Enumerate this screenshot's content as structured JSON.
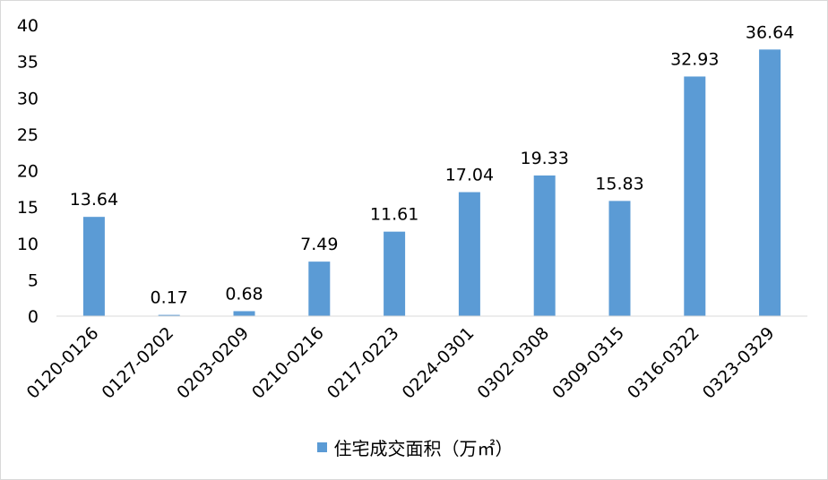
{
  "chart_data": {
    "type": "bar",
    "categories": [
      "0120-0126",
      "0127-0202",
      "0203-0209",
      "0210-0216",
      "0217-0223",
      "0224-0301",
      "0302-0308",
      "0309-0315",
      "0316-0322",
      "0323-0329"
    ],
    "series": [
      {
        "name": "住宅成交面积（万㎡）",
        "values": [
          13.64,
          0.17,
          0.68,
          7.49,
          11.61,
          17.04,
          19.33,
          15.83,
          32.93,
          36.64
        ],
        "labels": [
          "13.64",
          "0.17",
          "0.68",
          "7.49",
          "11.61",
          "17.04",
          "19.33",
          "15.83",
          "32.93",
          "36.64"
        ],
        "color": "#5b9bd5"
      }
    ],
    "ylim": [
      0,
      40
    ],
    "yticks": [
      "0",
      "5",
      "10",
      "15",
      "20",
      "25",
      "30",
      "35",
      "40"
    ],
    "grid": false,
    "legend_position": "bottom",
    "xlabel_rotation": "diagonal"
  }
}
